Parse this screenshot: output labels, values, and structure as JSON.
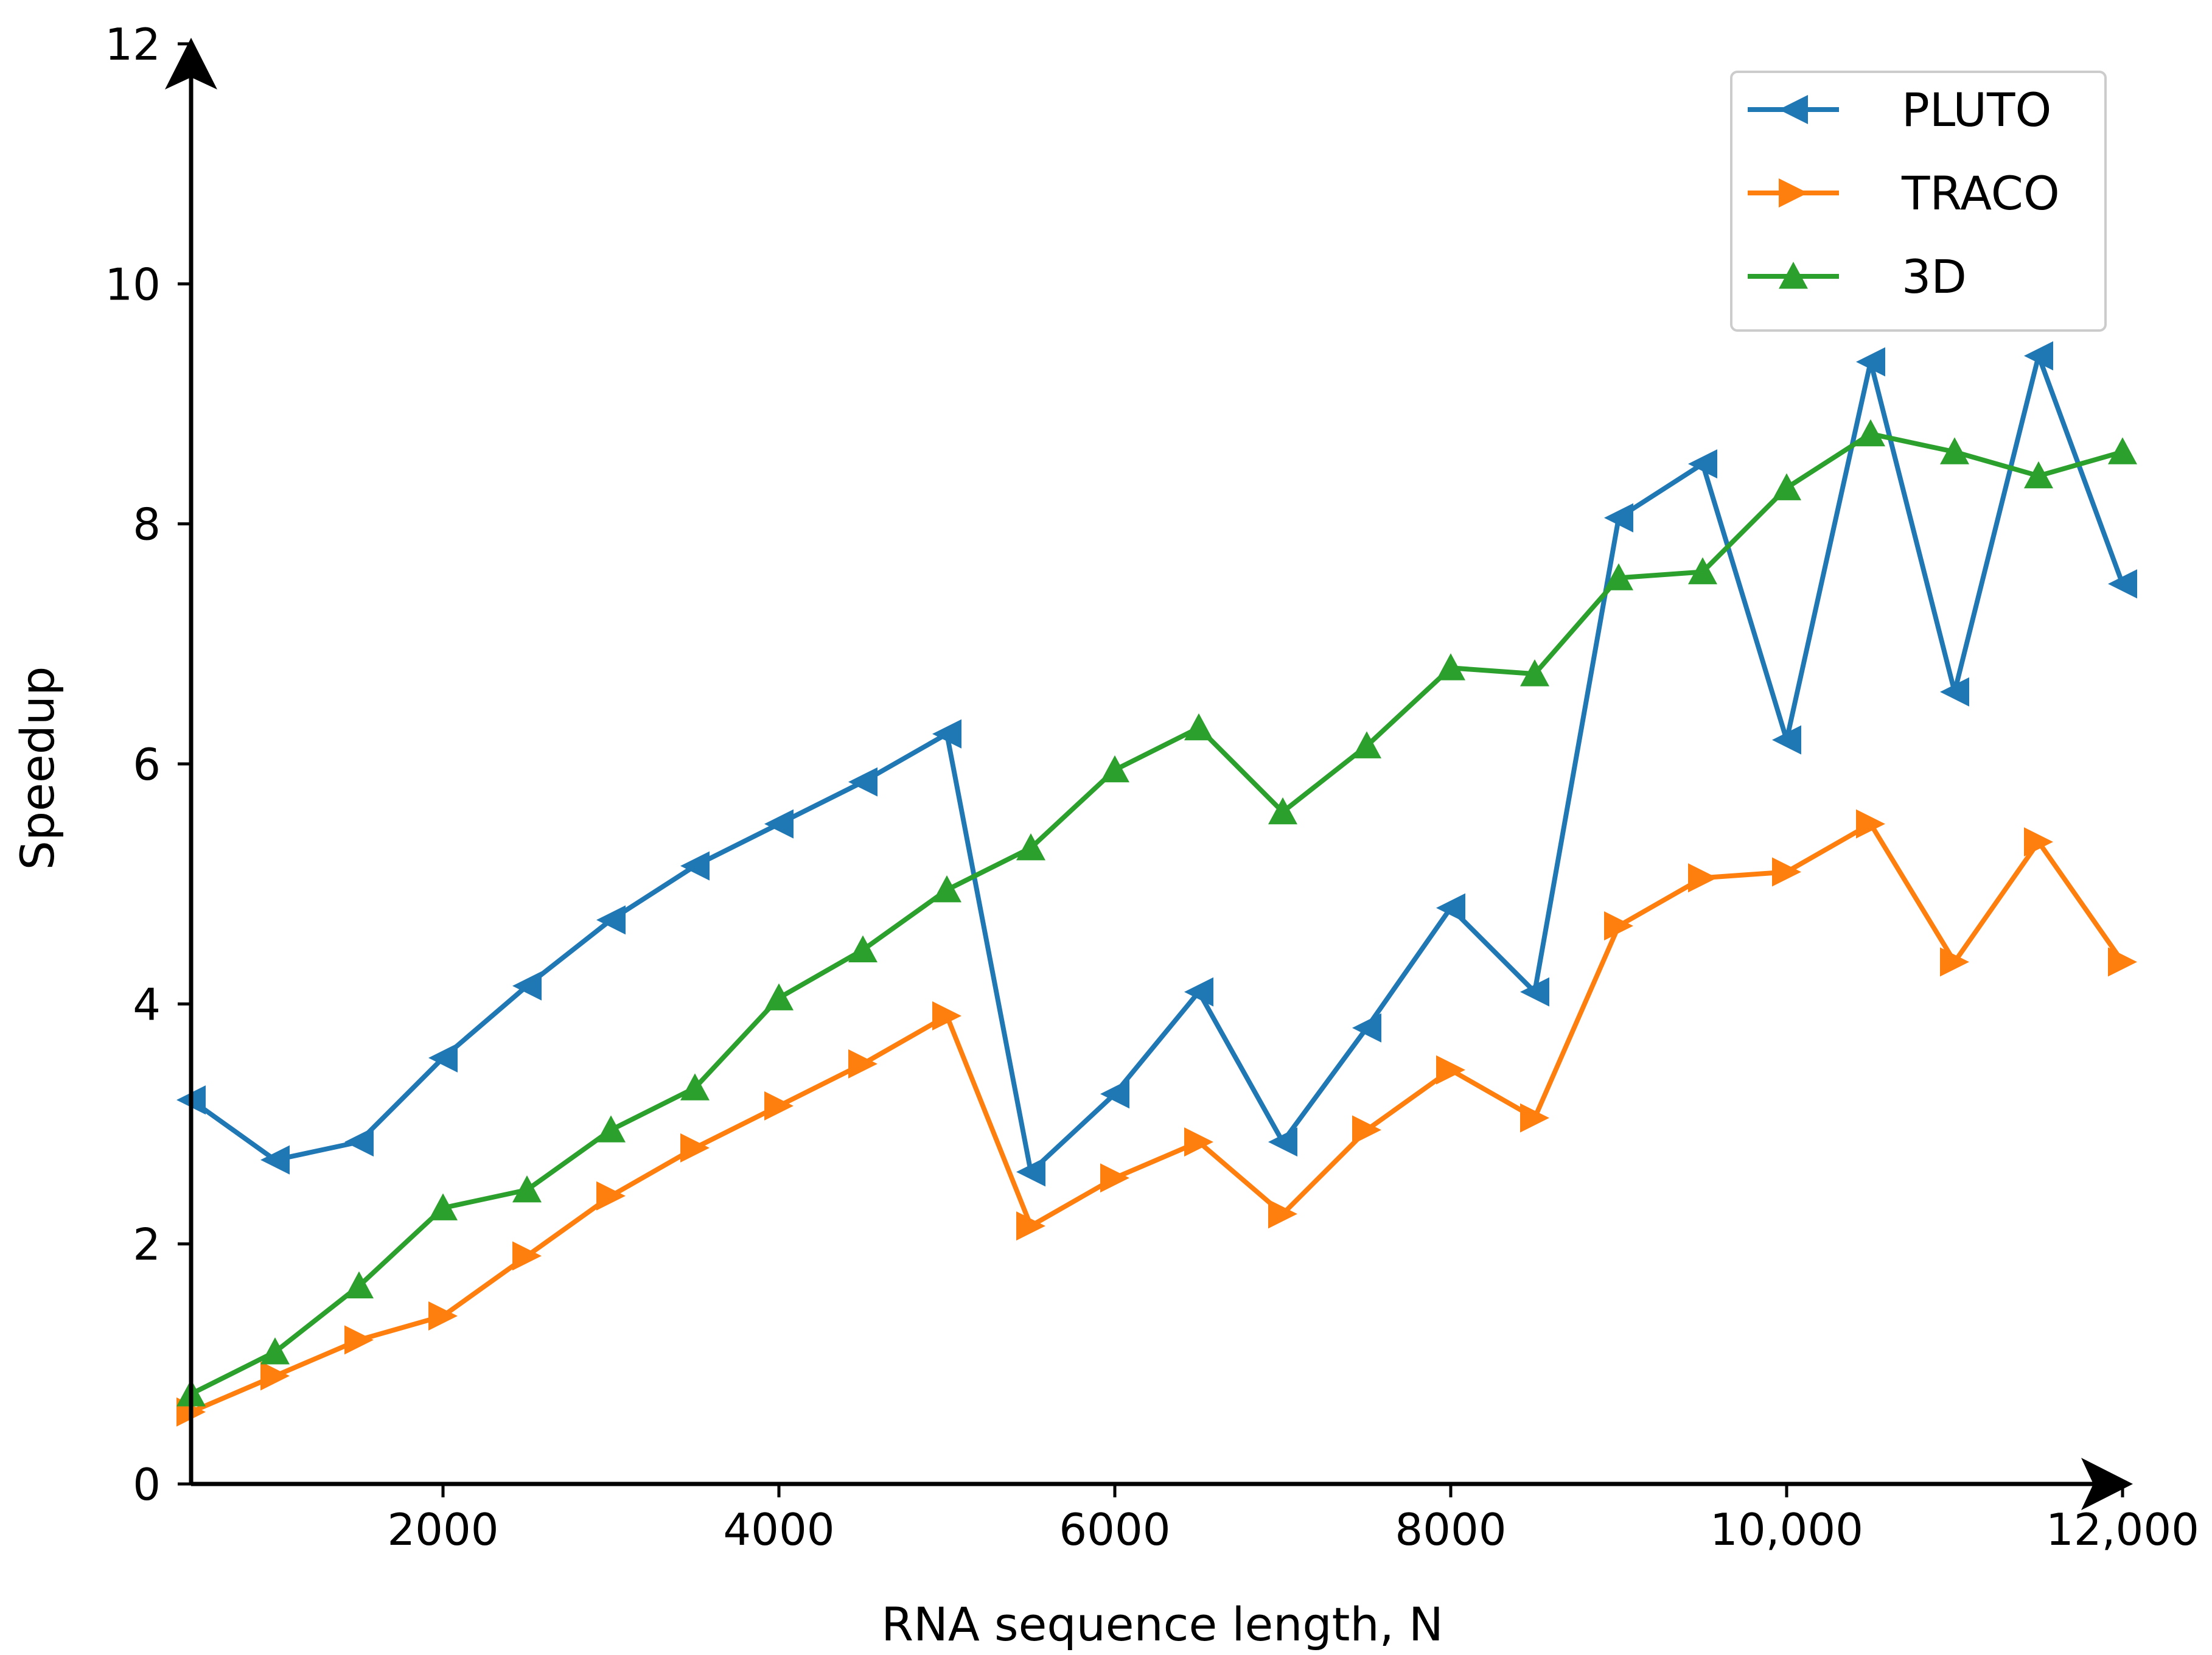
{
  "chart_data": {
    "type": "line",
    "title": "",
    "xlabel": "RNA sequence length, N",
    "ylabel": "Speedup",
    "xlim": [
      500,
      12000
    ],
    "ylim": [
      0,
      12
    ],
    "xticks": [
      2000,
      4000,
      6000,
      8000,
      10000,
      12000
    ],
    "xtick_labels": [
      "2000",
      "4000",
      "6000",
      "8000",
      "10,000",
      "12,000"
    ],
    "yticks": [
      0,
      2,
      4,
      6,
      8,
      10,
      12
    ],
    "ytick_labels": [
      "0",
      "2",
      "4",
      "6",
      "8",
      "10",
      "12"
    ],
    "legend_position": "top-right",
    "x": [
      500,
      1000,
      1500,
      2000,
      2500,
      3000,
      3500,
      4000,
      4500,
      5000,
      5500,
      6000,
      6500,
      7000,
      7500,
      8000,
      8500,
      9000,
      9500,
      10000,
      10500,
      11000,
      11500,
      12000
    ],
    "series": [
      {
        "name": "PLUTO",
        "color": "#1f77b4",
        "marker": "triangle-left",
        "values": [
          3.2,
          2.7,
          2.85,
          3.55,
          4.15,
          4.7,
          5.15,
          5.5,
          5.85,
          6.25,
          2.6,
          3.25,
          4.1,
          2.85,
          3.8,
          4.8,
          4.1,
          8.05,
          8.5,
          6.2,
          9.35,
          6.6,
          9.4,
          7.5
        ]
      },
      {
        "name": "TRACO",
        "color": "#ff7f0e",
        "marker": "triangle-right",
        "values": [
          0.6,
          0.9,
          1.2,
          1.4,
          1.9,
          2.4,
          2.8,
          3.15,
          3.5,
          3.9,
          2.15,
          2.55,
          2.85,
          2.25,
          2.95,
          3.45,
          3.05,
          4.65,
          5.05,
          5.1,
          5.5,
          4.35,
          5.35,
          4.35
        ]
      },
      {
        "name": "3D",
        "color": "#2ca02c",
        "marker": "triangle-up",
        "values": [
          0.75,
          1.1,
          1.65,
          2.3,
          2.45,
          2.95,
          3.3,
          4.05,
          4.45,
          4.95,
          5.3,
          5.95,
          6.3,
          5.6,
          6.15,
          6.8,
          6.75,
          7.55,
          7.6,
          8.3,
          8.75,
          8.6,
          8.4,
          8.6
        ]
      }
    ]
  }
}
